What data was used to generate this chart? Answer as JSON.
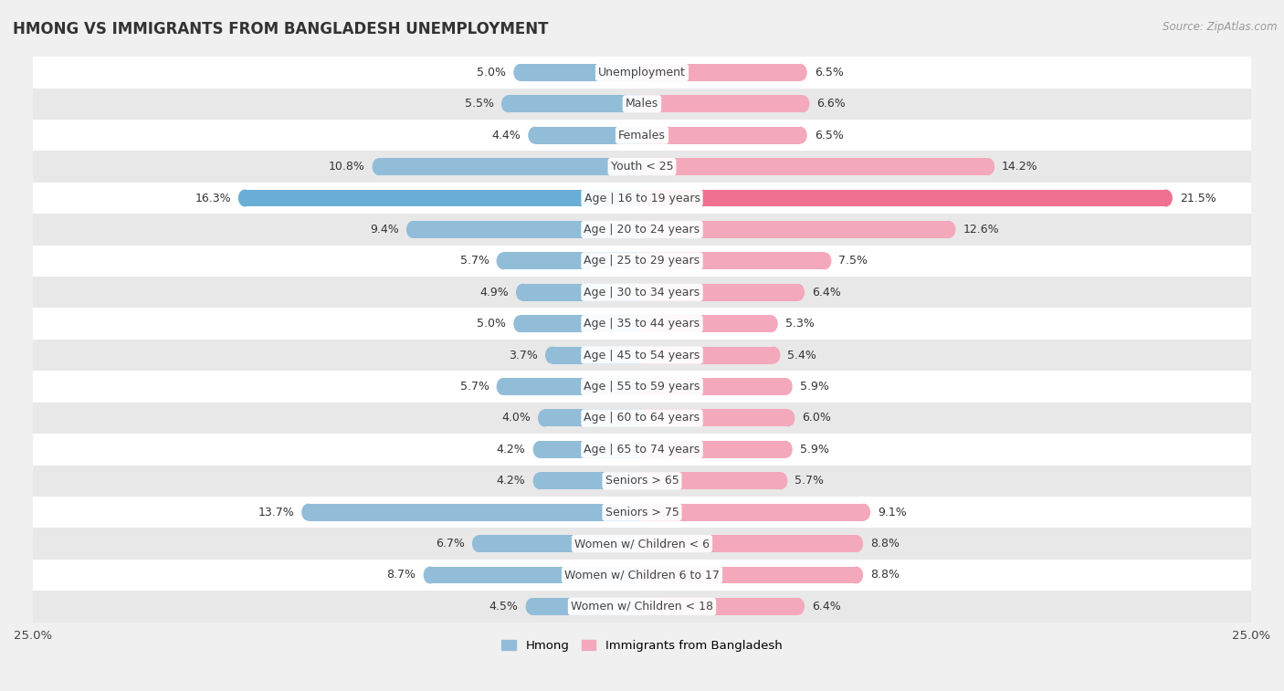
{
  "title": "HMONG VS IMMIGRANTS FROM BANGLADESH UNEMPLOYMENT",
  "source": "Source: ZipAtlas.com",
  "categories": [
    "Unemployment",
    "Males",
    "Females",
    "Youth < 25",
    "Age | 16 to 19 years",
    "Age | 20 to 24 years",
    "Age | 25 to 29 years",
    "Age | 30 to 34 years",
    "Age | 35 to 44 years",
    "Age | 45 to 54 years",
    "Age | 55 to 59 years",
    "Age | 60 to 64 years",
    "Age | 65 to 74 years",
    "Seniors > 65",
    "Seniors > 75",
    "Women w/ Children < 6",
    "Women w/ Children 6 to 17",
    "Women w/ Children < 18"
  ],
  "hmong": [
    5.0,
    5.5,
    4.4,
    10.8,
    16.3,
    9.4,
    5.7,
    4.9,
    5.0,
    3.7,
    5.7,
    4.0,
    4.2,
    4.2,
    13.7,
    6.7,
    8.7,
    4.5
  ],
  "bangladesh": [
    6.5,
    6.6,
    6.5,
    14.2,
    21.5,
    12.6,
    7.5,
    6.4,
    5.3,
    5.4,
    5.9,
    6.0,
    5.9,
    5.7,
    9.1,
    8.8,
    8.8,
    6.4
  ],
  "hmong_color": "#92bdd8",
  "bangladesh_color": "#f4a8bc",
  "hmong_highlight_color": "#6aaed6",
  "bangladesh_highlight_color": "#f07090",
  "highlight_rows": [
    4
  ],
  "xlim": 25.0,
  "bar_height": 0.55,
  "bg_color": "#f0f0f0",
  "row_color_light": "#ffffff",
  "row_color_dark": "#e8e8e8",
  "label_fontsize": 9.0,
  "value_fontsize": 9.0,
  "title_fontsize": 12,
  "legend_label_hmong": "Hmong",
  "legend_label_bangladesh": "Immigrants from Bangladesh"
}
